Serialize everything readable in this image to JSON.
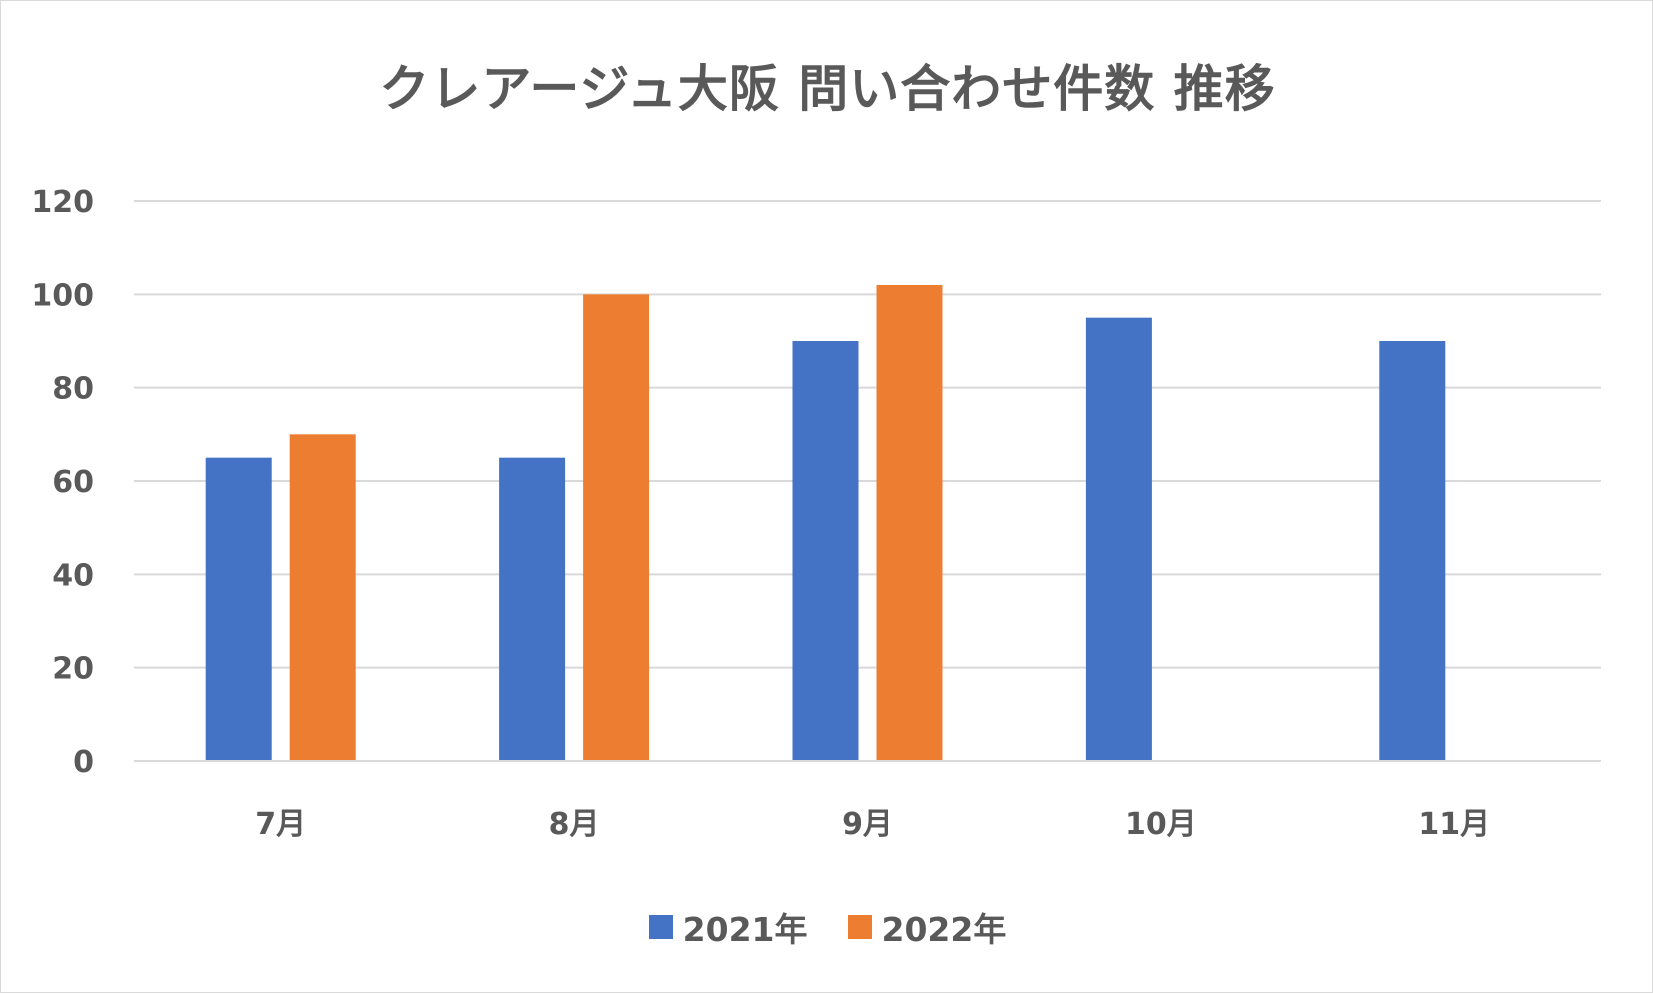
{
  "colors": {
    "series_2021": "#4472c4",
    "series_2022": "#ed7d31",
    "gridline": "#d9d9d9",
    "text": "#595959"
  },
  "chart_data": {
    "type": "bar",
    "title": "クレアージュ大阪 問い合わせ件数 推移",
    "xlabel": "",
    "ylabel": "",
    "categories": [
      "7月",
      "8月",
      "9月",
      "10月",
      "11月"
    ],
    "series": [
      {
        "name": "2021年",
        "values": [
          65,
          65,
          90,
          95,
          90
        ]
      },
      {
        "name": "2022年",
        "values": [
          70,
          100,
          102,
          null,
          null
        ]
      }
    ],
    "ylim": [
      0,
      120
    ],
    "yticks": [
      "0",
      "20",
      "40",
      "60",
      "80",
      "100",
      "120"
    ],
    "grid": true,
    "legend_position": "bottom"
  }
}
